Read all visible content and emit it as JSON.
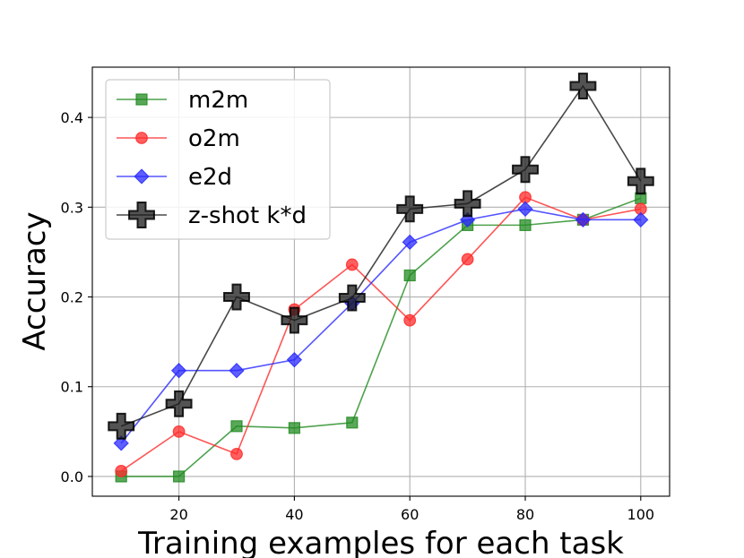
{
  "chart_data": {
    "type": "line",
    "title": "",
    "xlabel": "Training examples for each task",
    "ylabel": "Accuracy",
    "xlim": [
      5,
      105
    ],
    "ylim": [
      -0.022,
      0.456
    ],
    "xticks": [
      20,
      40,
      60,
      80,
      100
    ],
    "yticks": [
      0.0,
      0.1,
      0.2,
      0.3,
      0.4
    ],
    "xtick_labels": [
      "20",
      "40",
      "60",
      "80",
      "100"
    ],
    "ytick_labels": [
      "0.0",
      "0.1",
      "0.2",
      "0.3",
      "0.4"
    ],
    "grid": true,
    "legend_position": "top-left",
    "x": [
      10,
      20,
      30,
      40,
      50,
      60,
      70,
      80,
      90,
      100
    ],
    "series": [
      {
        "name": "m2m",
        "color": "#228b22",
        "marker": "square",
        "values": [
          0.0,
          0.0,
          0.056,
          0.054,
          0.06,
          0.224,
          0.28,
          0.28,
          0.286,
          0.31
        ]
      },
      {
        "name": "o2m",
        "color": "#ff2a2a",
        "marker": "circle",
        "values": [
          0.006,
          0.05,
          0.025,
          0.186,
          0.236,
          0.174,
          0.242,
          0.311,
          0.286,
          0.298
        ]
      },
      {
        "name": "e2d",
        "color": "#2a2aff",
        "marker": "diamond",
        "values": [
          0.037,
          0.118,
          0.118,
          0.13,
          0.193,
          0.261,
          0.286,
          0.298,
          0.286,
          0.286
        ]
      },
      {
        "name": "z-shot k*d",
        "color": "#1a1a1a",
        "marker": "plus",
        "values": [
          0.056,
          0.081,
          0.2,
          0.174,
          0.199,
          0.298,
          0.304,
          0.342,
          0.435,
          0.329
        ]
      }
    ]
  }
}
